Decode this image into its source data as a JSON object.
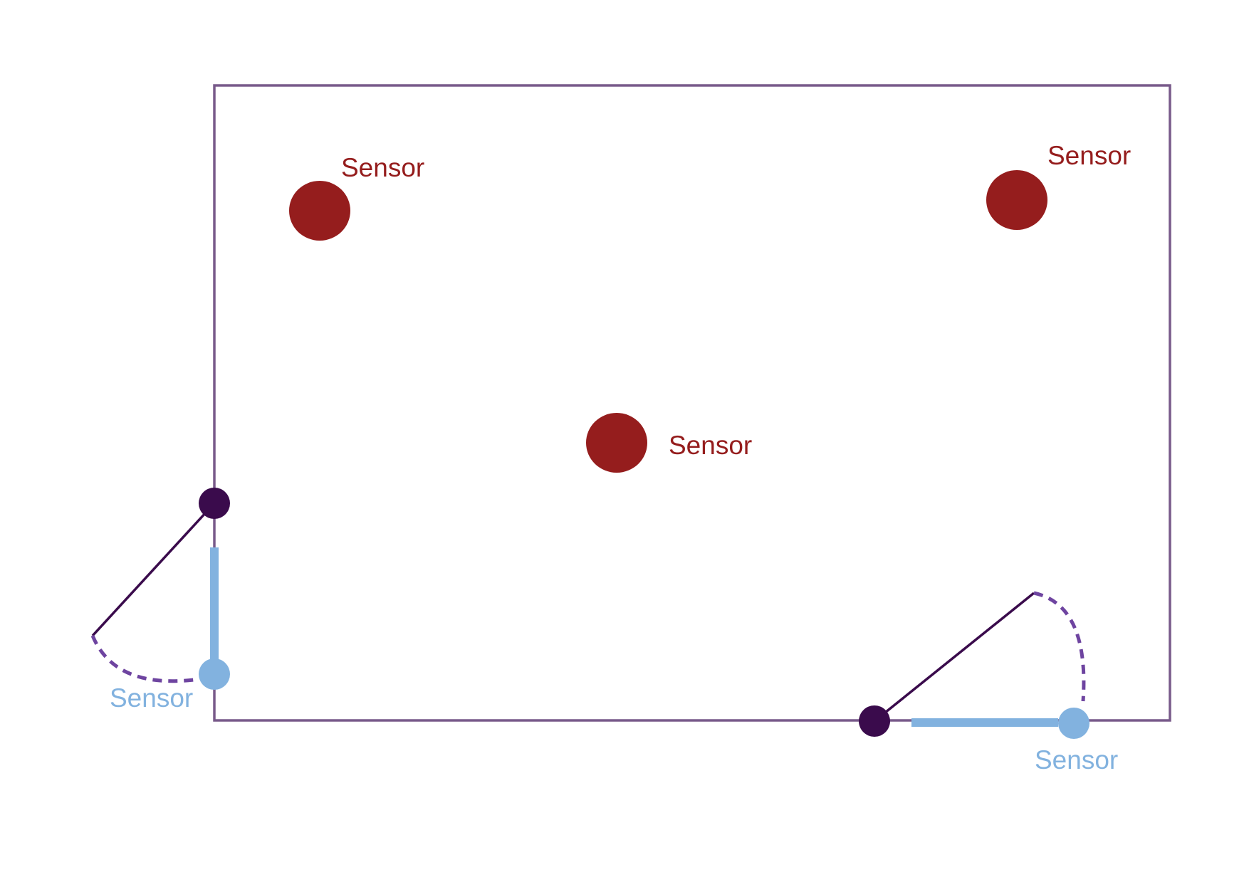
{
  "colors": {
    "room_outline": "#785a8a",
    "fixed_sensor": "#951d1d",
    "door_sensor": "#82b2df",
    "door_hinge": "#3a0b4c",
    "door_leaf": "#3a0b4c",
    "door_swing_arc": "#6e44a0"
  },
  "fixed_sensors": [
    {
      "label": "Sensor"
    },
    {
      "label": "Sensor"
    },
    {
      "label": "Sensor"
    }
  ],
  "door_sensors": [
    {
      "label": "Sensor"
    },
    {
      "label": "Sensor"
    }
  ]
}
